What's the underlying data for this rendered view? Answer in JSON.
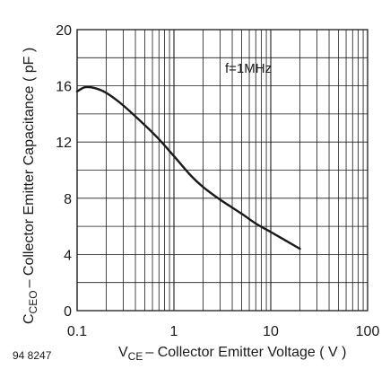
{
  "chart_data": {
    "type": "line",
    "x_scale": "log",
    "xlim": [
      0.1,
      100
    ],
    "ylim": [
      0,
      20
    ],
    "grid": true,
    "x_ticks": [
      0.1,
      1,
      10,
      100
    ],
    "x_tick_labels": [
      "0.1",
      "1",
      "10",
      "100"
    ],
    "y_ticks": [
      0,
      4,
      8,
      12,
      16,
      20
    ],
    "y_tick_labels": [
      "0",
      "4",
      "8",
      "12",
      "16",
      "20"
    ],
    "xlabel": {
      "main": "V",
      "sub": "CE",
      "rest": "– Collector Emitter Voltage ( V )"
    },
    "ylabel": {
      "main": "C",
      "sub": "CEO",
      "rest": "– Collector Emitter Capacitance ( pF )"
    },
    "annotation": "f=1MHz",
    "figure_id": "94 8247",
    "series": [
      {
        "x": [
          0.1,
          0.12,
          0.15,
          0.2,
          0.3,
          0.5,
          0.7,
          1,
          1.5,
          2,
          3,
          5,
          7,
          10,
          15,
          20
        ],
        "y": [
          15.6,
          15.9,
          15.85,
          15.5,
          14.6,
          13.2,
          12.2,
          11.0,
          9.6,
          8.8,
          7.9,
          6.9,
          6.2,
          5.6,
          4.9,
          4.4
        ]
      }
    ]
  }
}
